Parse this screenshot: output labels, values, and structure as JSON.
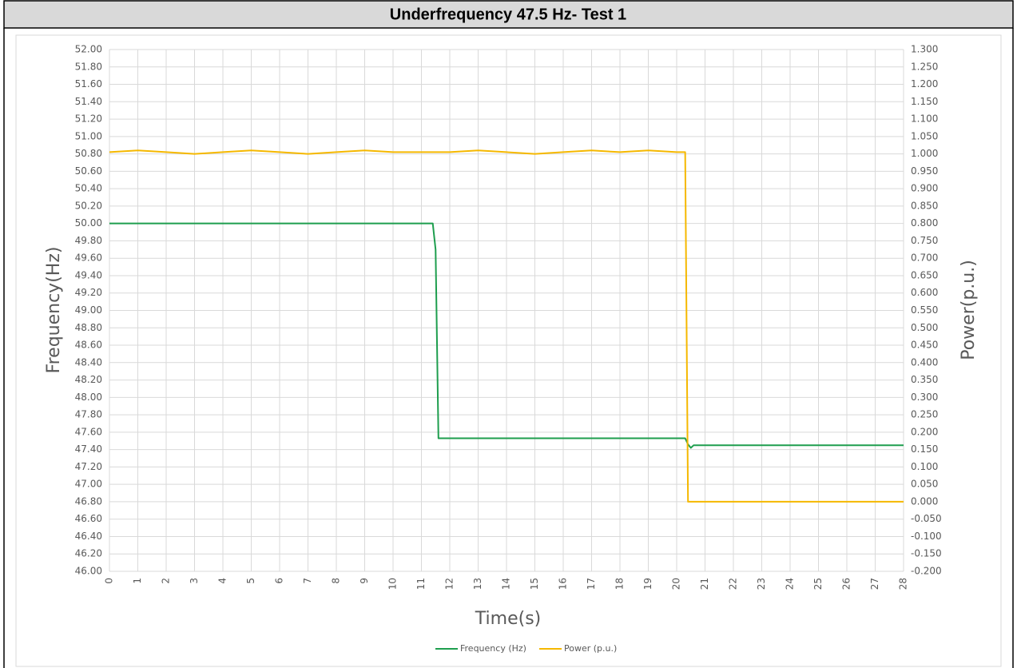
{
  "chart_data": {
    "type": "line",
    "title": "Underfrequency 47.5 Hz- Test 1",
    "xlabel": "Time(s)",
    "ylabel": "Frequency(Hz)",
    "y2label": "Power(p.u.)",
    "grid": true,
    "legend": "bottom",
    "x": [
      0,
      1,
      2,
      3,
      4,
      5,
      6,
      7,
      8,
      9,
      10,
      11,
      11.4,
      11.5,
      11.6,
      12,
      13,
      14,
      15,
      16,
      17,
      18,
      19,
      20,
      20.3,
      20.4,
      20.5,
      20.6,
      21,
      22,
      23,
      24,
      25,
      26,
      27,
      28
    ],
    "series": [
      {
        "name": "Frequency (Hz)",
        "color": "#1e9e4e",
        "axis": "y",
        "values": [
          50.0,
          50.0,
          50.0,
          50.0,
          50.0,
          50.0,
          50.0,
          50.0,
          50.0,
          50.0,
          50.0,
          50.0,
          50.0,
          49.7,
          47.53,
          47.53,
          47.53,
          47.53,
          47.53,
          47.53,
          47.53,
          47.53,
          47.53,
          47.53,
          47.53,
          47.46,
          47.42,
          47.45,
          47.45,
          47.45,
          47.45,
          47.45,
          47.45,
          47.45,
          47.45,
          47.45
        ]
      },
      {
        "name": "Power (p.u.)",
        "color": "#f5b800",
        "axis": "y2",
        "values": [
          1.005,
          1.01,
          1.005,
          1.0,
          1.005,
          1.01,
          1.005,
          1.0,
          1.005,
          1.01,
          1.005,
          1.005,
          1.005,
          1.005,
          1.005,
          1.005,
          1.01,
          1.005,
          1.0,
          1.005,
          1.01,
          1.005,
          1.01,
          1.005,
          1.005,
          0,
          0,
          0,
          0,
          0,
          0,
          0,
          0,
          0,
          0,
          0
        ]
      }
    ],
    "xlim": [
      0,
      28
    ],
    "xticks": [
      0,
      1,
      2,
      3,
      4,
      5,
      6,
      7,
      8,
      9,
      10,
      11,
      12,
      13,
      14,
      15,
      16,
      17,
      18,
      19,
      20,
      21,
      22,
      23,
      24,
      25,
      26,
      27,
      28
    ],
    "ylim": [
      46,
      52
    ],
    "yticks": [
      {
        "value": 46,
        "label": "46.00"
      },
      {
        "value": 46.2,
        "label": "46.20"
      },
      {
        "value": 46.4,
        "label": "46.40"
      },
      {
        "value": 46.6,
        "label": "46.60"
      },
      {
        "value": 46.8,
        "label": "46.80"
      },
      {
        "value": 47,
        "label": "47.00"
      },
      {
        "value": 47.2,
        "label": "47.20"
      },
      {
        "value": 47.4,
        "label": "47.40"
      },
      {
        "value": 47.6,
        "label": "47.60"
      },
      {
        "value": 47.8,
        "label": "47.80"
      },
      {
        "value": 48,
        "label": "48.00"
      },
      {
        "value": 48.2,
        "label": "48.20"
      },
      {
        "value": 48.4,
        "label": "48.40"
      },
      {
        "value": 48.6,
        "label": "48.60"
      },
      {
        "value": 48.8,
        "label": "48.80"
      },
      {
        "value": 49,
        "label": "49.00"
      },
      {
        "value": 49.2,
        "label": "49.20"
      },
      {
        "value": 49.4,
        "label": "49.40"
      },
      {
        "value": 49.6,
        "label": "49.60"
      },
      {
        "value": 49.8,
        "label": "49.80"
      },
      {
        "value": 50,
        "label": "50.00"
      },
      {
        "value": 50.2,
        "label": "50.20"
      },
      {
        "value": 50.4,
        "label": "50.40"
      },
      {
        "value": 50.6,
        "label": "50.60"
      },
      {
        "value": 50.8,
        "label": "50.80"
      },
      {
        "value": 51,
        "label": "51.00"
      },
      {
        "value": 51.2,
        "label": "51.20"
      },
      {
        "value": 51.4,
        "label": "51.40"
      },
      {
        "value": 51.6,
        "label": "51.60"
      },
      {
        "value": 51.8,
        "label": "51.80"
      },
      {
        "value": 52,
        "label": "52.00"
      }
    ],
    "y2lim": [
      -0.2,
      1.3
    ],
    "y2ticks": [
      {
        "value": -0.2,
        "label": "-0.200"
      },
      {
        "value": -0.15,
        "label": "-0.150"
      },
      {
        "value": -0.1,
        "label": "-0.100"
      },
      {
        "value": -0.05,
        "label": "-0.050"
      },
      {
        "value": 0,
        "label": "0.000"
      },
      {
        "value": 0.05,
        "label": "0.050"
      },
      {
        "value": 0.1,
        "label": "0.100"
      },
      {
        "value": 0.15,
        "label": "0.150"
      },
      {
        "value": 0.2,
        "label": "0.200"
      },
      {
        "value": 0.25,
        "label": "0.250"
      },
      {
        "value": 0.3,
        "label": "0.300"
      },
      {
        "value": 0.35,
        "label": "0.350"
      },
      {
        "value": 0.4,
        "label": "0.400"
      },
      {
        "value": 0.45,
        "label": "0.450"
      },
      {
        "value": 0.5,
        "label": "0.500"
      },
      {
        "value": 0.55,
        "label": "0.550"
      },
      {
        "value": 0.6,
        "label": "0.600"
      },
      {
        "value": 0.65,
        "label": "0.650"
      },
      {
        "value": 0.7,
        "label": "0.700"
      },
      {
        "value": 0.75,
        "label": "0.750"
      },
      {
        "value": 0.8,
        "label": "0.800"
      },
      {
        "value": 0.85,
        "label": "0.850"
      },
      {
        "value": 0.9,
        "label": "0.900"
      },
      {
        "value": 0.95,
        "label": "0.950"
      },
      {
        "value": 1,
        "label": "1.000"
      },
      {
        "value": 1.05,
        "label": "1.050"
      },
      {
        "value": 1.1,
        "label": "1.100"
      },
      {
        "value": 1.15,
        "label": "1.150"
      },
      {
        "value": 1.2,
        "label": "1.200"
      },
      {
        "value": 1.25,
        "label": "1.250"
      },
      {
        "value": 1.3,
        "label": "1.300"
      }
    ]
  }
}
